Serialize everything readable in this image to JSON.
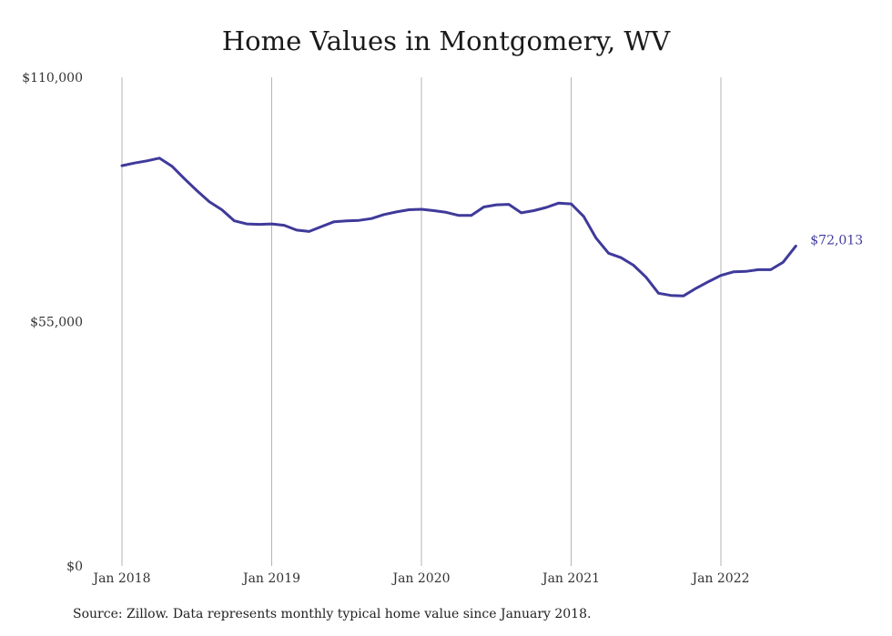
{
  "chart_data": {
    "type": "line",
    "title": "Home Values in Montgomery, WV",
    "xlabel": "",
    "ylabel": "",
    "ylim": [
      0,
      110000
    ],
    "y_ticks": [
      {
        "value": 0,
        "label": "$0"
      },
      {
        "value": 55000,
        "label": "$55,000"
      },
      {
        "value": 110000,
        "label": "$110,000"
      }
    ],
    "x_ticks": [
      {
        "value": "2018-01",
        "label": "Jan 2018"
      },
      {
        "value": "2019-01",
        "label": "Jan 2019"
      },
      {
        "value": "2020-01",
        "label": "Jan 2020"
      },
      {
        "value": "2021-01",
        "label": "Jan 2021"
      },
      {
        "value": "2022-01",
        "label": "Jan 2022"
      }
    ],
    "grid": "vertical",
    "series": [
      {
        "color": "#3f3a9a",
        "end_label": "$72,013",
        "x": [
          "2018-01",
          "2018-02",
          "2018-03",
          "2018-04",
          "2018-05",
          "2018-06",
          "2018-07",
          "2018-08",
          "2018-09",
          "2018-10",
          "2018-11",
          "2018-12",
          "2019-01",
          "2019-02",
          "2019-03",
          "2019-04",
          "2019-05",
          "2019-06",
          "2019-07",
          "2019-08",
          "2019-09",
          "2019-10",
          "2019-11",
          "2019-12",
          "2020-01",
          "2020-02",
          "2020-03",
          "2020-04",
          "2020-05",
          "2020-06",
          "2020-07",
          "2020-08",
          "2020-09",
          "2020-10",
          "2020-11",
          "2020-12",
          "2021-01",
          "2021-02",
          "2021-03",
          "2021-04",
          "2021-05",
          "2021-06",
          "2021-07",
          "2021-08",
          "2021-09",
          "2021-10",
          "2021-11",
          "2021-12",
          "2022-01",
          "2022-02",
          "2022-03",
          "2022-04",
          "2022-05",
          "2022-06",
          "2022-07"
        ],
        "values": [
          90100,
          90700,
          91200,
          91800,
          90000,
          87200,
          84500,
          82000,
          80200,
          77700,
          77000,
          76900,
          77000,
          76700,
          75600,
          75300,
          76400,
          77500,
          77700,
          77800,
          78200,
          79100,
          79700,
          80200,
          80300,
          80000,
          79600,
          78900,
          78900,
          80800,
          81300,
          81400,
          79500,
          80000,
          80700,
          81700,
          81500,
          78700,
          73800,
          70400,
          69400,
          67700,
          65000,
          61400,
          60900,
          60800,
          62500,
          64000,
          65400,
          66200,
          66300,
          66700,
          66700,
          68400,
          72013
        ]
      }
    ]
  },
  "source_note": "Source: Zillow. Data represents monthly typical home value since January 2018."
}
